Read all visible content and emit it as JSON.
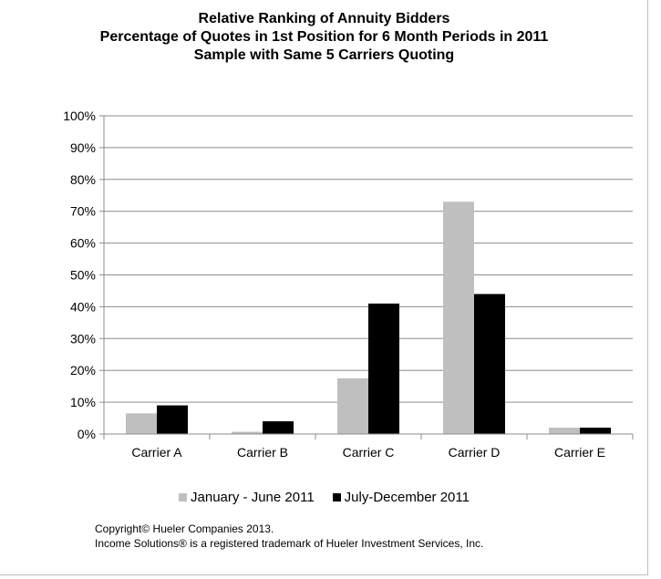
{
  "chart_data": {
    "type": "bar",
    "title": [
      "Relative Ranking of Annuity Bidders",
      "Percentage of Quotes in 1st Position for 6 Month Periods in 2011",
      "Sample with Same 5 Carriers Quoting"
    ],
    "categories": [
      "Carrier A",
      "Carrier B",
      "Carrier C",
      "Carrier D",
      "Carrier E"
    ],
    "series": [
      {
        "name": "January - June 2011",
        "color": "#bfbfbf",
        "values": [
          6.5,
          0.7,
          17.5,
          73,
          2
        ]
      },
      {
        "name": "July-December 2011",
        "color": "#000000",
        "values": [
          9,
          4,
          41,
          44,
          2
        ]
      }
    ],
    "ylim": [
      0,
      100
    ],
    "yticks": [
      0,
      10,
      20,
      30,
      40,
      50,
      60,
      70,
      80,
      90,
      100
    ],
    "ytick_labels": [
      "0%",
      "10%",
      "20%",
      "30%",
      "40%",
      "50%",
      "60%",
      "70%",
      "80%",
      "90%",
      "100%"
    ],
    "grid": true,
    "legend_position": "bottom",
    "xlabel": "",
    "ylabel": ""
  },
  "footer": {
    "line1": "Copyright© Hueler Companies 2013.",
    "line2": "Income Solutions® is a registered trademark of Hueler Investment Services, Inc."
  }
}
